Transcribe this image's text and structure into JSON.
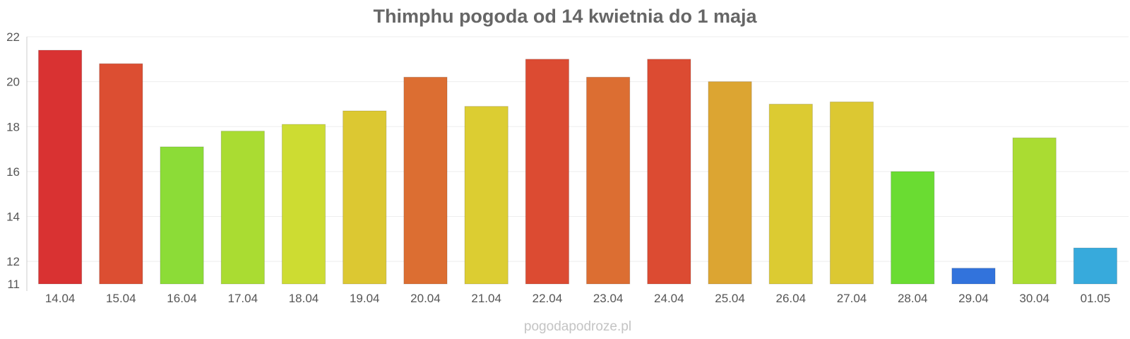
{
  "chart_data": {
    "type": "bar",
    "title": "Thimphu pogoda od 14 kwietnia do 1 maja",
    "xlabel": "",
    "ylabel": "",
    "ylim": [
      11,
      22
    ],
    "yticks": [
      11,
      12,
      14,
      16,
      18,
      20,
      22
    ],
    "categories": [
      "14.04",
      "15.04",
      "16.04",
      "17.04",
      "18.04",
      "19.04",
      "20.04",
      "21.04",
      "22.04",
      "23.04",
      "24.04",
      "25.04",
      "26.04",
      "27.04",
      "28.04",
      "29.04",
      "30.04",
      "01.05"
    ],
    "values": [
      21.4,
      20.8,
      17.1,
      17.8,
      18.1,
      18.7,
      20.2,
      18.9,
      21.0,
      20.2,
      21.0,
      20.0,
      19.0,
      19.1,
      16.0,
      11.7,
      17.5,
      12.6
    ],
    "colors": [
      "#d93232",
      "#dc4e32",
      "#8cdc37",
      "#aadc32",
      "#cddc32",
      "#dcc832",
      "#dc6e32",
      "#dccd32",
      "#dc4b32",
      "#dc6e32",
      "#dc4b32",
      "#dca532",
      "#dccb32",
      "#dcc832",
      "#6adc32",
      "#3273dc",
      "#aadc32",
      "#37aadc"
    ],
    "grid": true,
    "legend": "none"
  },
  "footer": "pogodapodroze.pl"
}
